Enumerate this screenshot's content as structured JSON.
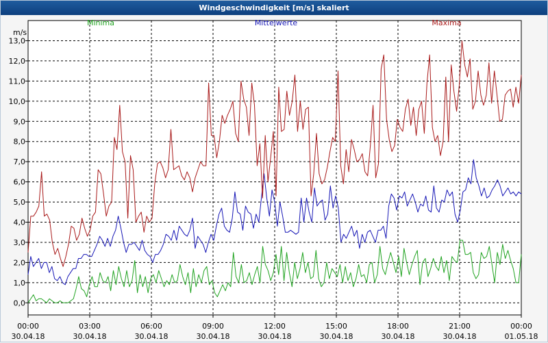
{
  "window": {
    "title": "Windgeschwindigkeit [m/s] skaliert"
  },
  "chart_data": {
    "type": "line",
    "title": "Windgeschwindigkeit [m/s] skaliert",
    "ylabel": "m/s",
    "ylim": [
      -0.6,
      14.0
    ],
    "yticks": [
      "0,0",
      "1,0",
      "2,0",
      "3,0",
      "4,0",
      "5,0",
      "6,0",
      "7,0",
      "8,0",
      "9,0",
      "10,0",
      "11,0",
      "12,0",
      "13,0"
    ],
    "ytick_values": [
      0,
      1,
      2,
      3,
      4,
      5,
      6,
      7,
      8,
      9,
      10,
      11,
      12,
      13
    ],
    "xlim": [
      0,
      24
    ],
    "xticks": [
      {
        "value": 0,
        "time": "00:00",
        "date": "30.04.18"
      },
      {
        "value": 3,
        "time": "03:00",
        "date": "30.04.18"
      },
      {
        "value": 6,
        "time": "06:00",
        "date": "30.04.18"
      },
      {
        "value": 9,
        "time": "09:00",
        "date": "30.04.18"
      },
      {
        "value": 12,
        "time": "12:00",
        "date": "30.04.18"
      },
      {
        "value": 15,
        "time": "15:00",
        "date": "30.04.18"
      },
      {
        "value": 18,
        "time": "18:00",
        "date": "30.04.18"
      },
      {
        "value": 21,
        "time": "21:00",
        "date": "30.04.18"
      },
      {
        "value": 24,
        "time": "00:00",
        "date": "01.05.18"
      }
    ],
    "grid": true,
    "series": [
      {
        "name": "Minima",
        "color": "#1fa21f",
        "values": [
          0.0,
          0.2,
          0.4,
          0.1,
          0.2,
          0.2,
          0.1,
          0.0,
          0.2,
          0.1,
          0.0,
          0.0,
          0.1,
          0.0,
          0.0,
          0.0,
          0.1,
          0.2,
          0.7,
          1.3,
          0.7,
          0.6,
          0.3,
          0.9,
          1.3,
          0.8,
          0.8,
          1.5,
          1.1,
          1.0,
          1.3,
          0.6,
          1.6,
          0.9,
          1.8,
          1.2,
          0.8,
          1.6,
          0.8,
          1.1,
          2.1,
          0.5,
          1.4,
          0.8,
          1.3,
          0.5,
          1.2,
          1.4,
          1.0,
          1.6,
          1.2,
          0.8,
          1.1,
          0.9,
          1.4,
          1.0,
          1.1,
          1.9,
          1.3,
          0.9,
          1.5,
          0.5,
          1.7,
          0.8,
          1.4,
          1.0,
          1.6,
          1.8,
          0.9,
          1.1,
          0.5,
          0.3,
          0.6,
          0.9,
          0.6,
          1.0,
          0.8,
          2.5,
          1.3,
          1.0,
          1.9,
          1.0,
          1.1,
          1.5,
          0.9,
          1.4,
          1.8,
          1.0,
          2.8,
          1.9,
          1.6,
          1.1,
          1.5,
          2.4,
          1.4,
          2.8,
          1.1,
          2.5,
          1.5,
          0.8,
          2.0,
          1.2,
          1.7,
          2.5,
          1.5,
          2.0,
          1.2,
          1.3,
          2.6,
          1.2,
          0.8,
          1.0,
          2.0,
          1.2,
          1.7,
          1.5,
          1.3,
          1.9,
          1.0,
          1.8,
          1.1,
          1.5,
          0.8,
          1.2,
          1.9,
          1.3,
          1.4,
          1.0,
          1.9,
          2.0,
          1.0,
          1.4,
          2.8,
          1.7,
          1.4,
          2.0,
          2.5,
          2.0,
          1.5,
          2.3,
          1.3,
          2.7,
          2.0,
          1.4,
          1.9,
          2.3,
          2.6,
          0.9,
          2.0,
          2.2,
          1.3,
          1.7,
          2.2,
          1.8,
          1.6,
          2.3,
          1.5,
          2.1,
          1.1,
          2.3,
          2.1,
          2.0,
          3.1,
          3.1,
          2.4,
          2.4,
          2.5,
          1.5,
          1.2,
          1.4,
          2.5,
          2.2,
          2.3,
          2.8,
          1.9,
          1.0,
          2.5,
          1.9,
          2.9,
          2.2,
          2.6,
          2.1,
          1.7,
          1.0,
          1.0,
          2.4
        ]
      },
      {
        "name": "Mittelwerte",
        "color": "#1515b5",
        "values": [
          1.4,
          2.3,
          1.8,
          2.0,
          2.2,
          1.7,
          2.0,
          2.0,
          1.5,
          1.8,
          1.2,
          1.1,
          1.3,
          1.0,
          0.9,
          1.3,
          1.5,
          1.7,
          1.7,
          2.2,
          2.2,
          2.4,
          2.4,
          2.3,
          2.3,
          2.6,
          2.9,
          3.3,
          3.1,
          2.8,
          3.2,
          2.8,
          3.3,
          3.6,
          4.3,
          3.7,
          3.0,
          2.5,
          2.9,
          2.9,
          3.0,
          2.8,
          2.6,
          3.1,
          2.6,
          2.4,
          2.3,
          2.0,
          2.4,
          2.4,
          2.6,
          2.9,
          3.4,
          3.3,
          3.1,
          3.6,
          3.1,
          3.8,
          3.6,
          3.4,
          3.3,
          3.6,
          4.2,
          2.7,
          3.3,
          3.1,
          2.9,
          2.5,
          3.0,
          3.4,
          3.1,
          3.8,
          4.4,
          4.7,
          3.8,
          3.6,
          3.5,
          4.2,
          5.5,
          4.5,
          4.4,
          3.6,
          4.8,
          4.5,
          4.4,
          3.7,
          4.4,
          4.0,
          5.2,
          6.4,
          5.2,
          4.3,
          5.6,
          5.0,
          3.8,
          5.0,
          4.3,
          3.5,
          3.5,
          3.6,
          3.5,
          3.4,
          3.5,
          5.2,
          4.0,
          5.2,
          4.5,
          4.0,
          5.7,
          4.8,
          5.0,
          5.1,
          4.1,
          4.4,
          5.8,
          4.7,
          5.3,
          4.7,
          3.0,
          3.4,
          3.2,
          3.5,
          3.8,
          3.3,
          3.6,
          2.7,
          3.4,
          3.0,
          3.5,
          3.6,
          3.3,
          3.0,
          3.6,
          3.6,
          3.8,
          3.2,
          4.8,
          5.4,
          5.2,
          4.6,
          5.3,
          5.2,
          5.5,
          4.8,
          5.1,
          5.4,
          5.0,
          4.5,
          4.9,
          4.8,
          5.3,
          4.6,
          4.5,
          5.8,
          4.7,
          4.5,
          5.1,
          5.0,
          5.6,
          5.3,
          5.5,
          4.4,
          4.0,
          4.6,
          5.5,
          5.6,
          6.2,
          5.9,
          7.1,
          6.2,
          5.8,
          5.3,
          5.7,
          5.2,
          5.3,
          5.6,
          5.8,
          6.1,
          5.8,
          5.3,
          5.5,
          5.7,
          5.4,
          5.5,
          5.3,
          5.5,
          5.4
        ]
      },
      {
        "name": "Maxima",
        "color": "#a81818",
        "values": [
          2.5,
          4.3,
          4.3,
          4.5,
          4.8,
          6.5,
          4.3,
          4.4,
          4.1,
          3.0,
          2.4,
          2.7,
          2.2,
          1.8,
          2.3,
          2.9,
          3.8,
          3.7,
          3.1,
          3.4,
          4.2,
          3.7,
          3.3,
          3.6,
          4.3,
          4.5,
          6.6,
          6.4,
          5.4,
          4.3,
          4.8,
          5.0,
          8.2,
          7.6,
          9.8,
          7.5,
          7.0,
          4.2,
          7.3,
          6.6,
          4.0,
          4.3,
          4.5,
          3.5,
          4.3,
          4.0,
          4.2,
          5.9,
          6.9,
          7.0,
          6.7,
          6.2,
          6.6,
          8.6,
          6.6,
          6.7,
          6.8,
          6.3,
          6.1,
          6.5,
          6.2,
          5.5,
          6.2,
          6.6,
          7.0,
          6.8,
          6.8,
          10.9,
          8.3,
          8.3,
          7.2,
          8.0,
          9.3,
          8.9,
          9.3,
          9.6,
          10.0,
          8.4,
          8.0,
          11.0,
          10.1,
          9.7,
          8.3,
          10.9,
          9.8,
          6.8,
          7.9,
          5.2,
          8.3,
          6.0,
          7.2,
          8.5,
          5.3,
          10.7,
          8.5,
          8.6,
          10.5,
          9.3,
          10.0,
          11.3,
          8.5,
          10.0,
          8.6,
          9.6,
          9.7,
          5.3,
          6.4,
          8.4,
          6.4,
          5.9,
          6.1,
          6.7,
          7.5,
          8.2,
          8.0,
          11.5,
          6.8,
          5.9,
          7.6,
          6.5,
          8.1,
          7.6,
          7.0,
          7.1,
          7.4,
          6.5,
          6.3,
          7.8,
          9.8,
          6.2,
          6.9,
          11.6,
          12.3,
          9.1,
          8.1,
          7.5,
          7.8,
          9.1,
          8.7,
          8.5,
          9.6,
          10.1,
          8.8,
          9.7,
          8.3,
          9.6,
          10.0,
          8.4,
          10.9,
          12.3,
          8.7,
          8.0,
          8.3,
          7.3,
          8.0,
          11.2,
          8.0,
          11.8,
          10.5,
          9.5,
          10.8,
          13.0,
          11.8,
          11.2,
          12.1,
          9.6,
          10.0,
          11.5,
          10.3,
          9.8,
          10.3,
          11.9,
          9.9,
          11.5,
          10.3,
          9.0,
          9.1,
          10.3,
          10.5,
          10.6,
          9.7,
          10.7,
          9.9,
          11.3
        ]
      }
    ]
  }
}
